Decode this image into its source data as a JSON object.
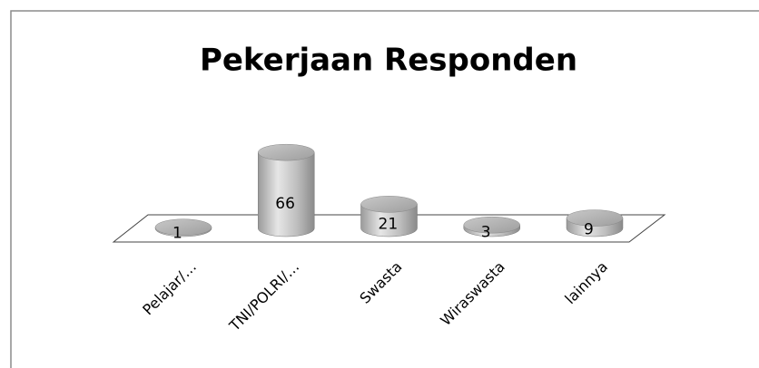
{
  "chart_data": {
    "type": "bar3d",
    "title": "Pekerjaan Responden",
    "categories": [
      "Pelajar/…",
      "TNI/POLRI/…",
      "Swasta",
      "Wiraswasta",
      "lainnya"
    ],
    "values": [
      1,
      66,
      21,
      3,
      9
    ],
    "color": "#b0b0b0"
  }
}
